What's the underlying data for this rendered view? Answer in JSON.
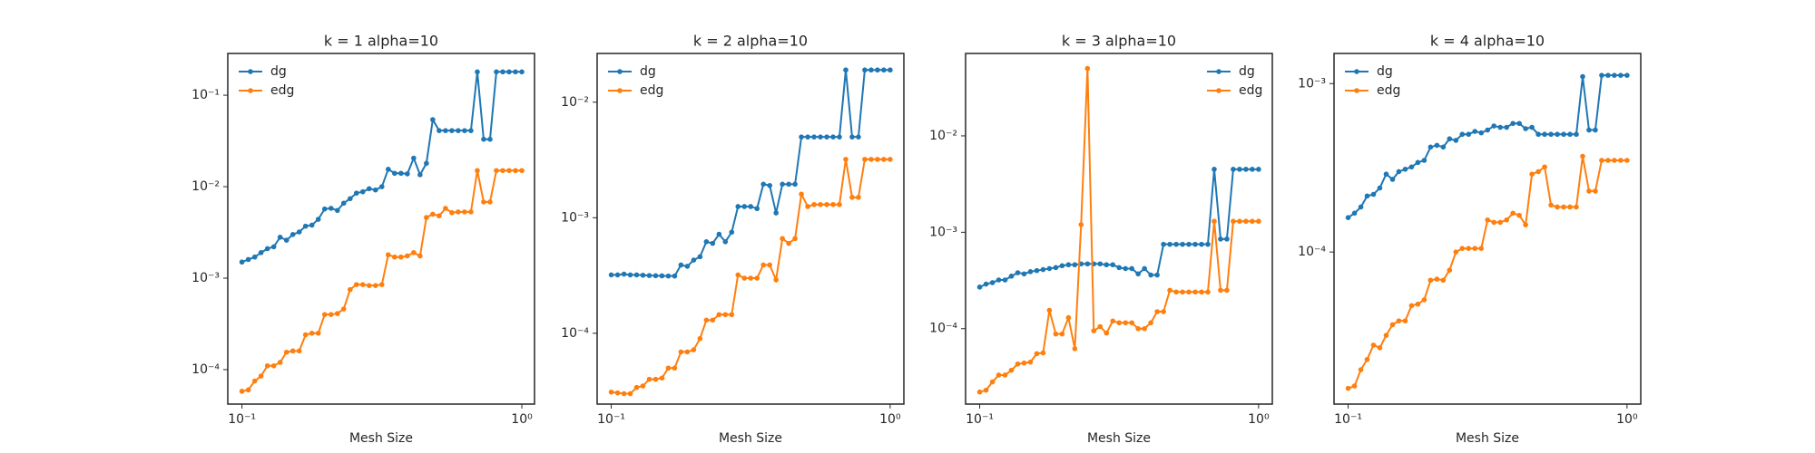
{
  "chart_data": [
    {
      "type": "line",
      "title": "k = 1 alpha=10",
      "xlabel": "Mesh Size",
      "xscale": "log",
      "yscale": "log",
      "legend": "upper left",
      "xlim": [
        0.089,
        1.11
      ],
      "ylim": [
        4.2e-05,
        0.286
      ],
      "xticks": [
        {
          "value": 0.1,
          "label": "10⁻¹"
        },
        {
          "value": 1,
          "label": "10⁰"
        }
      ],
      "yticks": [
        {
          "value": 0.0001,
          "label": "10⁻⁴"
        },
        {
          "value": 0.001,
          "label": "10⁻³"
        },
        {
          "value": 0.01,
          "label": "10⁻²"
        },
        {
          "value": 0.1,
          "label": "10⁻¹"
        }
      ],
      "x": [
        0.1,
        0.1054,
        0.1111,
        0.117,
        0.1233,
        0.1299,
        0.1369,
        0.1443,
        0.152,
        0.1602,
        0.1688,
        0.1778,
        0.1874,
        0.1975,
        0.2081,
        0.2193,
        0.231,
        0.2435,
        0.2565,
        0.2703,
        0.2848,
        0.3001,
        0.3162,
        0.3332,
        0.3511,
        0.37,
        0.3899,
        0.4108,
        0.4329,
        0.4561,
        0.4806,
        0.5065,
        0.5337,
        0.5623,
        0.5925,
        0.6244,
        0.6579,
        0.6933,
        0.7305,
        0.7697,
        0.8111,
        0.8547,
        0.9006,
        0.949,
        1.0
      ],
      "series": [
        {
          "name": "dg",
          "color": "#1f77b4",
          "values": [
            0.0015,
            0.0016,
            0.0017,
            0.0019,
            0.0021,
            0.0022,
            0.0028,
            0.0026,
            0.003,
            0.0032,
            0.0037,
            0.0038,
            0.0044,
            0.0057,
            0.0058,
            0.0055,
            0.0066,
            0.0074,
            0.0085,
            0.0088,
            0.0095,
            0.0092,
            0.01,
            0.0155,
            0.014,
            0.014,
            0.0138,
            0.0205,
            0.0135,
            0.018,
            0.054,
            0.041,
            0.041,
            0.041,
            0.041,
            0.041,
            0.041,
            0.18,
            0.033,
            0.033,
            0.18,
            0.18,
            0.18,
            0.18,
            0.18
          ]
        },
        {
          "name": "edg",
          "color": "#ff7f0e",
          "values": [
            5.8e-05,
            6e-05,
            7.5e-05,
            8.5e-05,
            0.00011,
            0.00011,
            0.00012,
            0.000155,
            0.00016,
            0.00016,
            0.00024,
            0.00025,
            0.00025,
            0.0004,
            0.0004,
            0.00041,
            0.00046,
            0.00075,
            0.00085,
            0.00085,
            0.00083,
            0.00083,
            0.00085,
            0.0018,
            0.0017,
            0.0017,
            0.00175,
            0.0019,
            0.00175,
            0.0046,
            0.005,
            0.0048,
            0.0058,
            0.0052,
            0.0053,
            0.0053,
            0.0053,
            0.015,
            0.0068,
            0.0068,
            0.015,
            0.015,
            0.015,
            0.015,
            0.015
          ]
        }
      ]
    },
    {
      "type": "line",
      "title": "k = 2 alpha=10",
      "xlabel": "Mesh Size",
      "xscale": "log",
      "yscale": "log",
      "legend": "upper left",
      "xlim": [
        0.089,
        1.12
      ],
      "ylim": [
        2.44e-05,
        0.0264
      ],
      "xticks": [
        {
          "value": 0.1,
          "label": "10⁻¹"
        },
        {
          "value": 1,
          "label": "10⁰"
        }
      ],
      "yticks": [
        {
          "value": 0.0001,
          "label": "10⁻⁴"
        },
        {
          "value": 0.001,
          "label": "10⁻³"
        },
        {
          "value": 0.01,
          "label": "10⁻²"
        }
      ],
      "x": [
        0.1,
        0.1054,
        0.1111,
        0.117,
        0.1233,
        0.1299,
        0.1369,
        0.1443,
        0.152,
        0.1602,
        0.1688,
        0.1778,
        0.1874,
        0.1975,
        0.2081,
        0.2193,
        0.231,
        0.2435,
        0.2565,
        0.2703,
        0.2848,
        0.3001,
        0.3162,
        0.3332,
        0.3511,
        0.37,
        0.3899,
        0.4108,
        0.4329,
        0.4561,
        0.4806,
        0.5065,
        0.5337,
        0.5623,
        0.5925,
        0.6244,
        0.6579,
        0.6933,
        0.7305,
        0.7697,
        0.8111,
        0.8547,
        0.9006,
        0.949,
        1.0
      ],
      "series": [
        {
          "name": "dg",
          "color": "#1f77b4",
          "values": [
            0.00032,
            0.00032,
            0.000325,
            0.00032,
            0.00032,
            0.000318,
            0.000316,
            0.000315,
            0.000314,
            0.000313,
            0.000313,
            0.00039,
            0.00038,
            0.00043,
            0.00046,
            0.00062,
            0.0006,
            0.00072,
            0.00062,
            0.00075,
            0.00125,
            0.00125,
            0.00125,
            0.0012,
            0.00195,
            0.0019,
            0.0011,
            0.00195,
            0.00195,
            0.00195,
            0.005,
            0.005,
            0.005,
            0.005,
            0.005,
            0.005,
            0.005,
            0.019,
            0.005,
            0.005,
            0.019,
            0.019,
            0.019,
            0.019,
            0.019
          ]
        },
        {
          "name": "edg",
          "color": "#ff7f0e",
          "values": [
            3.1e-05,
            3.05e-05,
            3e-05,
            3e-05,
            3.4e-05,
            3.5e-05,
            4e-05,
            4e-05,
            4.1e-05,
            5e-05,
            5e-05,
            6.9e-05,
            6.9e-05,
            7.2e-05,
            9e-05,
            0.00013,
            0.00013,
            0.000145,
            0.000145,
            0.000145,
            0.00032,
            0.0003,
            0.0003,
            0.0003,
            0.00039,
            0.00039,
            0.00029,
            0.00066,
            0.0006,
            0.00066,
            0.0016,
            0.00125,
            0.0013,
            0.0013,
            0.0013,
            0.0013,
            0.0013,
            0.0032,
            0.0015,
            0.0015,
            0.0032,
            0.0032,
            0.0032,
            0.0032,
            0.0032
          ]
        }
      ]
    },
    {
      "type": "line",
      "title": "k = 3 alpha=10",
      "xlabel": "Mesh Size",
      "xscale": "log",
      "yscale": "log",
      "legend": "upper right",
      "xlim": [
        0.089,
        1.12
      ],
      "ylim": [
        1.65e-05,
        0.0716
      ],
      "xticks": [
        {
          "value": 0.1,
          "label": "10⁻¹"
        },
        {
          "value": 1,
          "label": "10⁰"
        }
      ],
      "yticks": [
        {
          "value": 0.0001,
          "label": "10⁻⁴"
        },
        {
          "value": 0.001,
          "label": "10⁻³"
        },
        {
          "value": 0.01,
          "label": "10⁻²"
        }
      ],
      "x": [
        0.1,
        0.1054,
        0.1111,
        0.117,
        0.1233,
        0.1299,
        0.1369,
        0.1443,
        0.152,
        0.1602,
        0.1688,
        0.1778,
        0.1874,
        0.1975,
        0.2081,
        0.2193,
        0.231,
        0.2435,
        0.2565,
        0.2703,
        0.2848,
        0.3001,
        0.3162,
        0.3332,
        0.3511,
        0.37,
        0.3899,
        0.4108,
        0.4329,
        0.4561,
        0.4806,
        0.5065,
        0.5337,
        0.5623,
        0.5925,
        0.6244,
        0.6579,
        0.6933,
        0.7305,
        0.7697,
        0.8111,
        0.8547,
        0.9006,
        0.949,
        1.0
      ],
      "series": [
        {
          "name": "dg",
          "color": "#1f77b4",
          "values": [
            0.00027,
            0.00029,
            0.0003,
            0.00032,
            0.00032,
            0.00035,
            0.00038,
            0.00037,
            0.00039,
            0.0004,
            0.00041,
            0.00042,
            0.00043,
            0.00045,
            0.00046,
            0.00046,
            0.00047,
            0.00047,
            0.00047,
            0.00047,
            0.00046,
            0.00046,
            0.00043,
            0.00042,
            0.00042,
            0.00037,
            0.00042,
            0.00036,
            0.00036,
            0.00075,
            0.00075,
            0.00075,
            0.00075,
            0.00075,
            0.00075,
            0.00075,
            0.00075,
            0.0045,
            0.00085,
            0.00085,
            0.0045,
            0.0045,
            0.0045,
            0.0045,
            0.0045
          ]
        },
        {
          "name": "edg",
          "color": "#ff7f0e",
          "values": [
            2.2e-05,
            2.3e-05,
            2.8e-05,
            3.3e-05,
            3.3e-05,
            3.7e-05,
            4.3e-05,
            4.4e-05,
            4.5e-05,
            5.5e-05,
            5.6e-05,
            0.000155,
            8.8e-05,
            8.8e-05,
            0.00013,
            6.2e-05,
            0.0012,
            0.05,
            9.5e-05,
            0.000105,
            9e-05,
            0.00012,
            0.000115,
            0.000115,
            0.000115,
            0.0001,
            0.0001,
            0.000115,
            0.00015,
            0.00015,
            0.00025,
            0.00024,
            0.00024,
            0.00024,
            0.00024,
            0.00024,
            0.00024,
            0.0013,
            0.00025,
            0.00025,
            0.0013,
            0.0013,
            0.0013,
            0.0013,
            0.0013
          ]
        }
      ]
    },
    {
      "type": "line",
      "title": "k = 4 alpha=10",
      "xlabel": "Mesh Size",
      "xscale": "log",
      "yscale": "log",
      "legend": "upper left",
      "xlim": [
        0.089,
        1.12
      ],
      "ylim": [
        1.25e-05,
        0.00151
      ],
      "xticks": [
        {
          "value": 0.1,
          "label": "10⁻¹"
        },
        {
          "value": 1,
          "label": "10⁰"
        }
      ],
      "yticks": [
        {
          "value": 0.0001,
          "label": "10⁻⁴"
        },
        {
          "value": 0.001,
          "label": "10⁻³"
        }
      ],
      "x": [
        0.1,
        0.1054,
        0.1111,
        0.117,
        0.1233,
        0.1299,
        0.1369,
        0.1443,
        0.152,
        0.1602,
        0.1688,
        0.1778,
        0.1874,
        0.1975,
        0.2081,
        0.2193,
        0.231,
        0.2435,
        0.2565,
        0.2703,
        0.2848,
        0.3001,
        0.3162,
        0.3332,
        0.3511,
        0.37,
        0.3899,
        0.4108,
        0.4329,
        0.4561,
        0.4806,
        0.5065,
        0.5337,
        0.5623,
        0.5925,
        0.6244,
        0.6579,
        0.6933,
        0.7305,
        0.7697,
        0.8111,
        0.8547,
        0.9006,
        0.949,
        1.0
      ],
      "series": [
        {
          "name": "dg",
          "color": "#1f77b4",
          "values": [
            0.00016,
            0.00017,
            0.000185,
            0.000215,
            0.00022,
            0.00024,
            0.00029,
            0.00027,
            0.0003,
            0.00031,
            0.00032,
            0.00034,
            0.00035,
            0.00042,
            0.00043,
            0.00042,
            0.00047,
            0.00046,
            0.0005,
            0.0005,
            0.00052,
            0.00051,
            0.00053,
            0.00056,
            0.00055,
            0.00055,
            0.00058,
            0.00058,
            0.00054,
            0.00055,
            0.0005,
            0.0005,
            0.0005,
            0.0005,
            0.0005,
            0.0005,
            0.0005,
            0.0011,
            0.00053,
            0.00053,
            0.00112,
            0.00112,
            0.00112,
            0.00112,
            0.00112
          ]
        },
        {
          "name": "edg",
          "color": "#ff7f0e",
          "values": [
            1.55e-05,
            1.6e-05,
            2e-05,
            2.3e-05,
            2.8e-05,
            2.7e-05,
            3.2e-05,
            3.7e-05,
            3.9e-05,
            3.9e-05,
            4.8e-05,
            4.9e-05,
            5.2e-05,
            6.8e-05,
            6.9e-05,
            6.8e-05,
            7.8e-05,
            0.0001,
            0.000105,
            0.000105,
            0.000105,
            0.000105,
            0.000155,
            0.00015,
            0.00015,
            0.000155,
            0.00017,
            0.000165,
            0.000145,
            0.00029,
            0.0003,
            0.00032,
            0.00019,
            0.000185,
            0.000185,
            0.000185,
            0.000185,
            0.00037,
            0.00023,
            0.00023,
            0.00035,
            0.00035,
            0.00035,
            0.00035,
            0.00035
          ]
        }
      ]
    }
  ]
}
